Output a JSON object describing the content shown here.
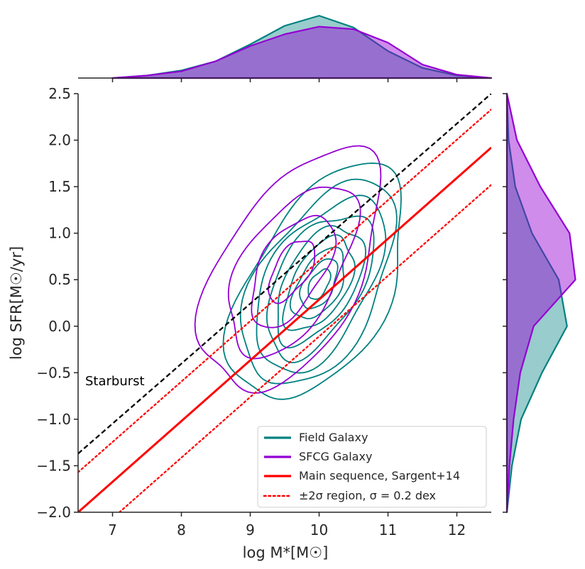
{
  "chart_data": {
    "type": "joint-kde",
    "xlabel": "log M*[M☉]",
    "ylabel": "log SFR[M☉/yr]",
    "xlim": [
      6.5,
      12.5
    ],
    "ylim": [
      -2.0,
      2.5
    ],
    "xticks": [
      7,
      8,
      9,
      10,
      11,
      12
    ],
    "yticks": [
      -2.0,
      -1.5,
      -1.0,
      -0.5,
      0.0,
      0.5,
      1.0,
      1.5,
      2.0,
      2.5
    ],
    "xtick_labels": [
      "7",
      "8",
      "9",
      "10",
      "11",
      "12"
    ],
    "ytick_labels": [
      "−2.0",
      "−1.5",
      "−1.0",
      "−0.5",
      "0.0",
      "0.5",
      "1.0",
      "1.5",
      "2.0",
      "2.5"
    ],
    "annotation": "Starburst",
    "series": [
      {
        "name": "Field Galaxy",
        "color": "#008080",
        "contour_center": [
          10.0,
          0.45
        ],
        "contour_levels": [
          {
            "sx": 1.55,
            "sy": 1.45
          },
          {
            "sx": 1.35,
            "sy": 1.25
          },
          {
            "sx": 1.15,
            "sy": 1.05
          },
          {
            "sx": 0.95,
            "sy": 0.87
          },
          {
            "sx": 0.78,
            "sy": 0.71
          },
          {
            "sx": 0.62,
            "sy": 0.56
          },
          {
            "sx": 0.47,
            "sy": 0.43
          },
          {
            "sx": 0.33,
            "sy": 0.3
          },
          {
            "sx": 0.2,
            "sy": 0.18
          }
        ],
        "marginal_x": {
          "x": [
            7.0,
            7.5,
            8.0,
            8.5,
            9.0,
            9.5,
            10.0,
            10.5,
            11.0,
            11.5,
            12.0,
            12.5
          ],
          "density": [
            0.0,
            0.03,
            0.09,
            0.2,
            0.4,
            0.62,
            0.74,
            0.6,
            0.32,
            0.12,
            0.03,
            0.0
          ]
        },
        "marginal_y": {
          "y": [
            -2.0,
            -1.5,
            -1.0,
            -0.5,
            0.0,
            0.5,
            1.0,
            1.5,
            2.0,
            2.5
          ],
          "density": [
            0.0,
            0.06,
            0.17,
            0.42,
            0.72,
            0.62,
            0.3,
            0.1,
            0.02,
            0.0
          ]
        }
      },
      {
        "name": "SFCG Galaxy",
        "color": "#9400d3",
        "contour_center": [
          9.6,
          0.6
        ],
        "contour_levels": [
          {
            "sx": 1.6,
            "sy": 1.45
          },
          {
            "sx": 1.15,
            "sy": 1.0
          },
          {
            "sx": 0.75,
            "sy": 0.65
          },
          {
            "sx": 0.42,
            "sy": 0.35
          }
        ],
        "marginal_x": {
          "x": [
            7.0,
            7.5,
            8.0,
            8.5,
            9.0,
            9.5,
            10.0,
            10.5,
            11.0,
            11.5,
            12.0,
            12.5
          ],
          "density": [
            0.0,
            0.03,
            0.08,
            0.2,
            0.38,
            0.52,
            0.61,
            0.58,
            0.42,
            0.16,
            0.04,
            0.0
          ]
        },
        "marginal_y": {
          "y": [
            -2.0,
            -1.5,
            -1.0,
            -0.5,
            0.0,
            0.5,
            1.0,
            1.5,
            2.0,
            2.5
          ],
          "density": [
            0.0,
            0.03,
            0.08,
            0.16,
            0.32,
            0.82,
            0.75,
            0.4,
            0.12,
            0.0
          ]
        }
      }
    ],
    "lines": [
      {
        "name": "Main sequence, Sargent+14",
        "color": "#ff0000",
        "style": "solid",
        "points": [
          [
            6.5,
            -2.0
          ],
          [
            12.5,
            1.92
          ]
        ]
      },
      {
        "name": "±2σ region, σ = 0.2 dex",
        "color": "#ff0000",
        "style": "dotted",
        "points": [
          [
            6.5,
            -1.57
          ],
          [
            12.5,
            2.33
          ]
        ]
      },
      {
        "name": "±2σ region, σ = 0.2 dex (lower)",
        "color": "#ff0000",
        "style": "dotted",
        "points": [
          [
            7.1,
            -2.0
          ],
          [
            12.5,
            1.52
          ]
        ]
      },
      {
        "name": "Starburst boundary",
        "color": "#000000",
        "style": "dashed",
        "points": [
          [
            6.5,
            -1.37
          ],
          [
            12.5,
            2.5
          ]
        ]
      }
    ],
    "legend": {
      "placement": "lower-right",
      "entries": [
        {
          "label": "Field Galaxy",
          "color": "#008080",
          "style": "solid"
        },
        {
          "label": "SFCG Galaxy",
          "color": "#9400d3",
          "style": "solid"
        },
        {
          "label": "Main sequence, Sargent+14",
          "color": "#ff0000",
          "style": "solid"
        },
        {
          "label": "±2σ region, σ = 0.2 dex",
          "color": "#ff0000",
          "style": "dotted"
        }
      ]
    }
  }
}
